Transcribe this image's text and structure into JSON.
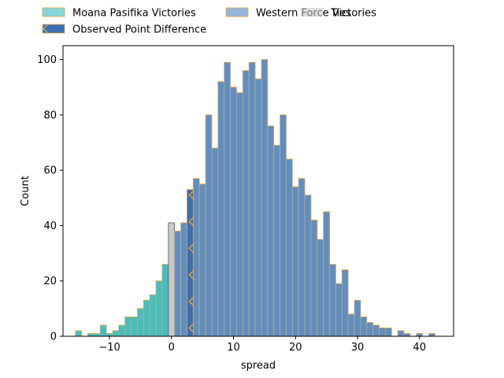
{
  "chart_data": {
    "type": "histogram",
    "xlabel": "spread",
    "ylabel": "Count",
    "xlim": [
      -17.5,
      45.5
    ],
    "ylim": [
      0,
      105
    ],
    "xticks": [
      -10,
      0,
      10,
      20,
      30,
      40
    ],
    "yticks": [
      0,
      20,
      40,
      60,
      80,
      100
    ],
    "bin_width": 1,
    "legend_position": "top",
    "legend": [
      {
        "label": "Moana Pasifika Victories",
        "color": "#40c0c6"
      },
      {
        "label": "Western Force Victories",
        "color": "#5b8fc9"
      },
      {
        "label": "Ties",
        "color": "#c8c8c8"
      },
      {
        "label": "Observed Point Difference",
        "color": "#3a6fb5"
      }
    ],
    "observed_point_difference": 3,
    "series": [
      {
        "name": "Moana Pasifika Victories",
        "bins": [
          [
            -15,
            2
          ],
          [
            -14,
            0
          ],
          [
            -13,
            1
          ],
          [
            -12,
            1
          ],
          [
            -11,
            4
          ],
          [
            -10,
            1
          ],
          [
            -9,
            2
          ],
          [
            -8,
            4
          ],
          [
            -7,
            7
          ],
          [
            -6,
            7
          ],
          [
            -5,
            10
          ],
          [
            -4,
            13
          ],
          [
            -3,
            15
          ],
          [
            -2,
            20
          ],
          [
            -1,
            26
          ]
        ]
      },
      {
        "name": "Ties",
        "bins": [
          [
            0,
            41
          ]
        ]
      },
      {
        "name": "Western Force Victories",
        "bins": [
          [
            1,
            38
          ],
          [
            2,
            41
          ],
          [
            3,
            53
          ],
          [
            4,
            57
          ],
          [
            5,
            55
          ],
          [
            6,
            80
          ],
          [
            7,
            68
          ],
          [
            8,
            92
          ],
          [
            9,
            99
          ],
          [
            10,
            90
          ],
          [
            11,
            88
          ],
          [
            12,
            96
          ],
          [
            13,
            99
          ],
          [
            14,
            93
          ],
          [
            15,
            100
          ],
          [
            16,
            76
          ],
          [
            17,
            69
          ],
          [
            18,
            80
          ],
          [
            19,
            64
          ],
          [
            20,
            54
          ],
          [
            21,
            57
          ],
          [
            22,
            51
          ],
          [
            23,
            42
          ],
          [
            24,
            35
          ],
          [
            25,
            45
          ],
          [
            26,
            26
          ],
          [
            27,
            19
          ],
          [
            28,
            24
          ],
          [
            29,
            8
          ],
          [
            30,
            13
          ],
          [
            31,
            7
          ],
          [
            32,
            5
          ],
          [
            33,
            4
          ],
          [
            34,
            3
          ],
          [
            35,
            3
          ],
          [
            36,
            0
          ],
          [
            37,
            2
          ],
          [
            38,
            1
          ],
          [
            39,
            0
          ],
          [
            40,
            1
          ],
          [
            41,
            0
          ],
          [
            42,
            1
          ]
        ]
      }
    ]
  }
}
